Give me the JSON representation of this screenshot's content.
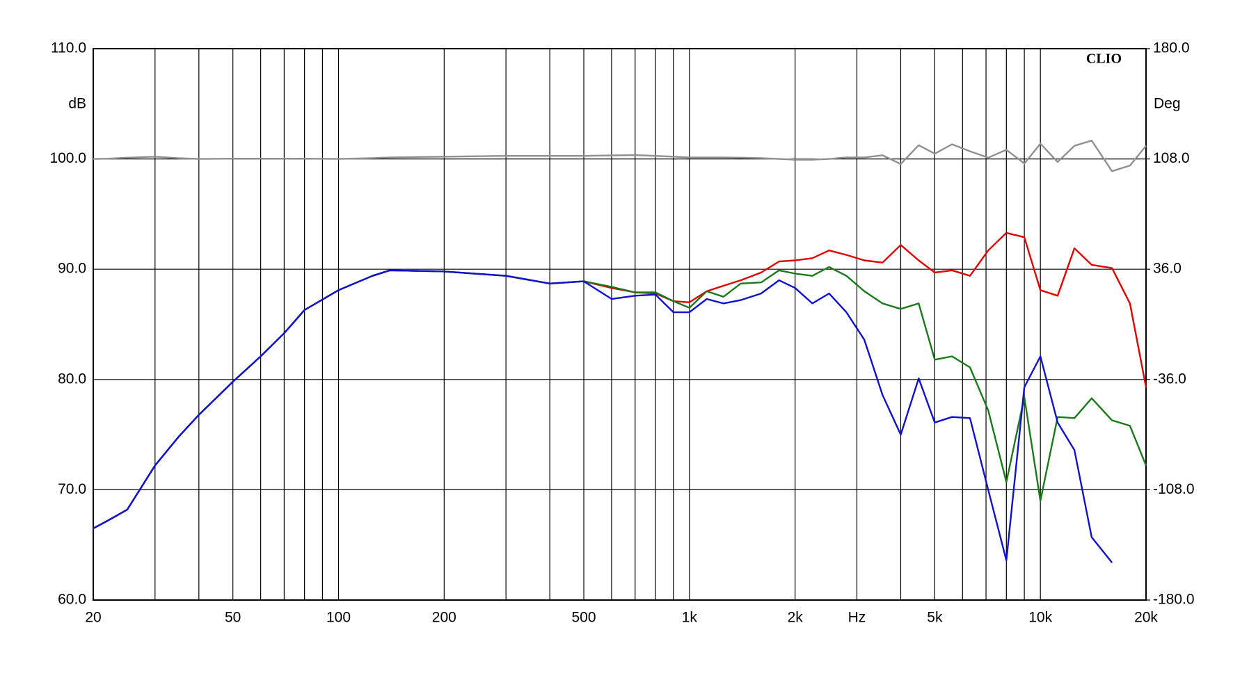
{
  "chart_data": {
    "type": "line",
    "annotation": "CLIO",
    "ylabel": "dB",
    "y2label": "Deg",
    "xscale": "log",
    "grid": true,
    "xlim": [
      20,
      20000
    ],
    "ylim": [
      60,
      110
    ],
    "y2lim": [
      -180,
      180
    ],
    "xticks": [
      20,
      50,
      100,
      200,
      500,
      {
        "value": 1000,
        "label": "1k"
      },
      {
        "value": 2000,
        "label": "2k"
      },
      {
        "value": 3000,
        "label": "Hz"
      },
      {
        "value": 5000,
        "label": "5k"
      },
      {
        "value": 10000,
        "label": "10k"
      },
      {
        "value": 20000,
        "label": "20k"
      }
    ],
    "xminor": [
      30,
      40,
      60,
      70,
      80,
      90,
      300,
      400,
      600,
      700,
      800,
      900,
      4000,
      6000,
      7000,
      8000,
      9000
    ],
    "yticks": [
      {
        "value": 60,
        "label": "60.0"
      },
      {
        "value": 70,
        "label": "70.0"
      },
      {
        "value": 80,
        "label": "80.0"
      },
      {
        "value": 90,
        "label": "90.0"
      },
      {
        "value": 100,
        "label": "100.0"
      },
      {
        "value": 110,
        "label": "110.0"
      }
    ],
    "y2ticks": [
      {
        "value": -180,
        "label": "-180.0"
      },
      {
        "value": -108,
        "label": "-108.0"
      },
      {
        "value": -36,
        "label": "-36.0"
      },
      {
        "value": 36,
        "label": "36.0"
      },
      {
        "value": 108,
        "label": "108.0"
      },
      {
        "value": 180,
        "label": "180.0"
      }
    ],
    "x": [
      20,
      22,
      25,
      30,
      35,
      40,
      50,
      60,
      70,
      80,
      100,
      125,
      140,
      200,
      300,
      400,
      500,
      600,
      700,
      800,
      900,
      1000,
      1120,
      1250,
      1400,
      1600,
      1800,
      2000,
      2240,
      2500,
      2800,
      3150,
      3550,
      4000,
      4500,
      5000,
      5600,
      6300,
      7100,
      8000,
      9000,
      10000,
      11200,
      12500,
      14000,
      16000,
      18000,
      20000
    ],
    "series": [
      {
        "color": "#909090",
        "axis": "y2",
        "values": [
          108,
          108.2,
          108.8,
          109.5,
          108.5,
          108,
          108.2,
          108.2,
          108.2,
          108.2,
          108,
          108.5,
          109,
          109.5,
          110,
          110,
          110,
          110.3,
          110.5,
          110,
          109.5,
          109,
          109,
          109,
          108.8,
          108.5,
          108,
          107.5,
          107.5,
          108,
          109,
          109,
          110.4,
          104.7,
          117,
          111.4,
          117.6,
          113,
          108.8,
          114,
          105,
          118,
          106,
          116.6,
          120,
          100,
          103.7,
          116.6
        ]
      },
      {
        "color": "#e00000",
        "values": [
          66.5,
          67.2,
          68.2,
          72.2,
          74.8,
          76.8,
          79.8,
          82.1,
          84.2,
          86.3,
          88.1,
          89.4,
          89.9,
          89.8,
          89.4,
          88.7,
          88.9,
          88.3,
          87.9,
          87.8,
          87.1,
          87.0,
          88.0,
          88.5,
          89.0,
          89.7,
          90.7,
          90.8,
          91.0,
          91.7,
          91.3,
          90.8,
          90.6,
          92.2,
          90.8,
          89.7,
          89.9,
          89.4,
          91.7,
          93.3,
          92.9,
          88.1,
          87.6,
          91.9,
          90.4,
          90.1,
          86.9,
          79.3
        ]
      },
      {
        "color": "#1a7a1a",
        "values": [
          66.5,
          67.2,
          68.2,
          72.2,
          74.8,
          76.8,
          79.8,
          82.1,
          84.2,
          86.3,
          88.1,
          89.4,
          89.9,
          89.8,
          89.4,
          88.7,
          88.9,
          88.4,
          87.9,
          87.9,
          87.1,
          86.5,
          88.0,
          87.5,
          88.7,
          88.8,
          89.9,
          89.6,
          89.4,
          90.2,
          89.4,
          88.0,
          86.9,
          86.4,
          86.9,
          81.8,
          82.1,
          81.1,
          77.2,
          70.7,
          78.4,
          69.0,
          76.6,
          76.5,
          78.3,
          76.3,
          75.8,
          72.2
        ]
      },
      {
        "color": "#1010d0",
        "values": [
          66.5,
          67.2,
          68.2,
          72.2,
          74.8,
          76.8,
          79.8,
          82.1,
          84.2,
          86.3,
          88.1,
          89.4,
          89.9,
          89.8,
          89.4,
          88.7,
          88.9,
          87.3,
          87.6,
          87.7,
          86.1,
          86.1,
          87.3,
          86.9,
          87.2,
          87.8,
          89.0,
          88.3,
          86.9,
          87.8,
          86.1,
          83.6,
          78.6,
          75.0,
          80.1,
          76.1,
          76.6,
          76.5,
          70.0,
          63.6,
          79.3,
          82.1,
          76.1,
          73.6,
          65.7,
          63.4,
          null,
          null
        ]
      }
    ]
  }
}
